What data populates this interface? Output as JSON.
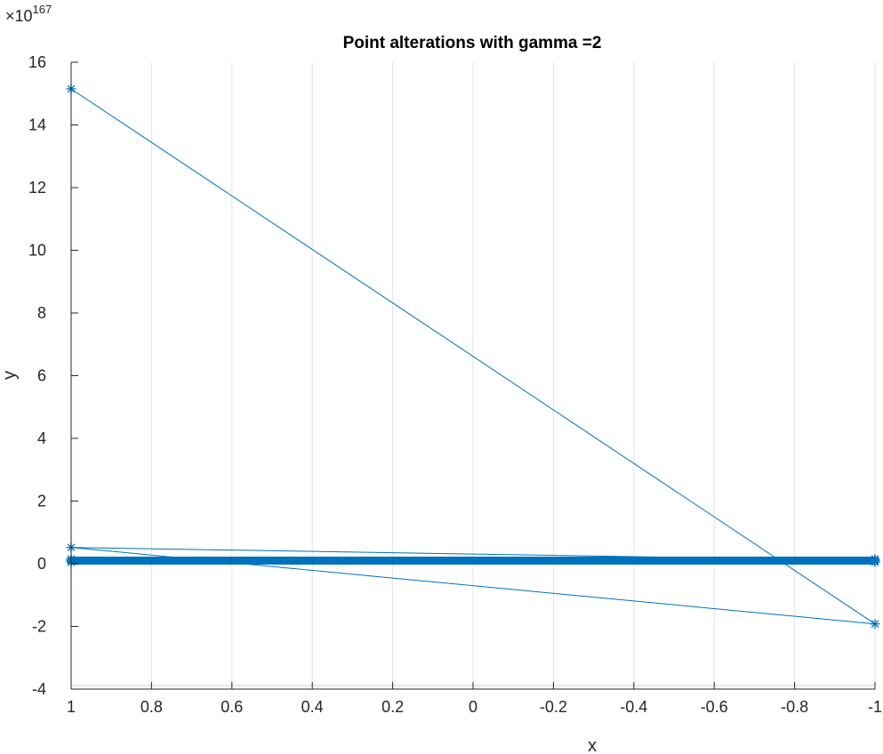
{
  "chart_data": {
    "type": "line",
    "title": "Point alterations with gamma =2",
    "xlabel": "x",
    "ylabel": "y",
    "xlim": [
      1,
      -1
    ],
    "x_reversed": true,
    "ylim": [
      -4,
      16
    ],
    "y_exponent_base": "×10",
    "y_exponent": "167",
    "xticks": [
      1,
      0.8,
      0.6,
      0.4,
      0.2,
      0,
      -0.2,
      -0.4,
      -0.6,
      -0.8,
      -1
    ],
    "xtick_labels": [
      "1",
      "0.8",
      "0.6",
      "0.4",
      "0.2",
      "0",
      "-0.2",
      "-0.4",
      "-0.6",
      "-0.8",
      "-1"
    ],
    "yticks": [
      -4,
      -2,
      0,
      2,
      4,
      6,
      8,
      10,
      12,
      14,
      16
    ],
    "ytick_labels": [
      "-4",
      "-2",
      "0",
      "2",
      "4",
      "6",
      "8",
      "10",
      "12",
      "14",
      "16"
    ],
    "grid": "vertical",
    "marker": "asterisk",
    "series": [
      {
        "color": "#0072BD",
        "x": [
          1,
          -1,
          1,
          -1,
          1,
          -1
        ],
        "y": [
          15.15,
          -1.92,
          0.52,
          0.1,
          0.1,
          0.1
        ]
      }
    ],
    "dense_band": {
      "y": 0.1,
      "x_from": 1,
      "x_to": -1,
      "color": "#0072BD"
    }
  }
}
